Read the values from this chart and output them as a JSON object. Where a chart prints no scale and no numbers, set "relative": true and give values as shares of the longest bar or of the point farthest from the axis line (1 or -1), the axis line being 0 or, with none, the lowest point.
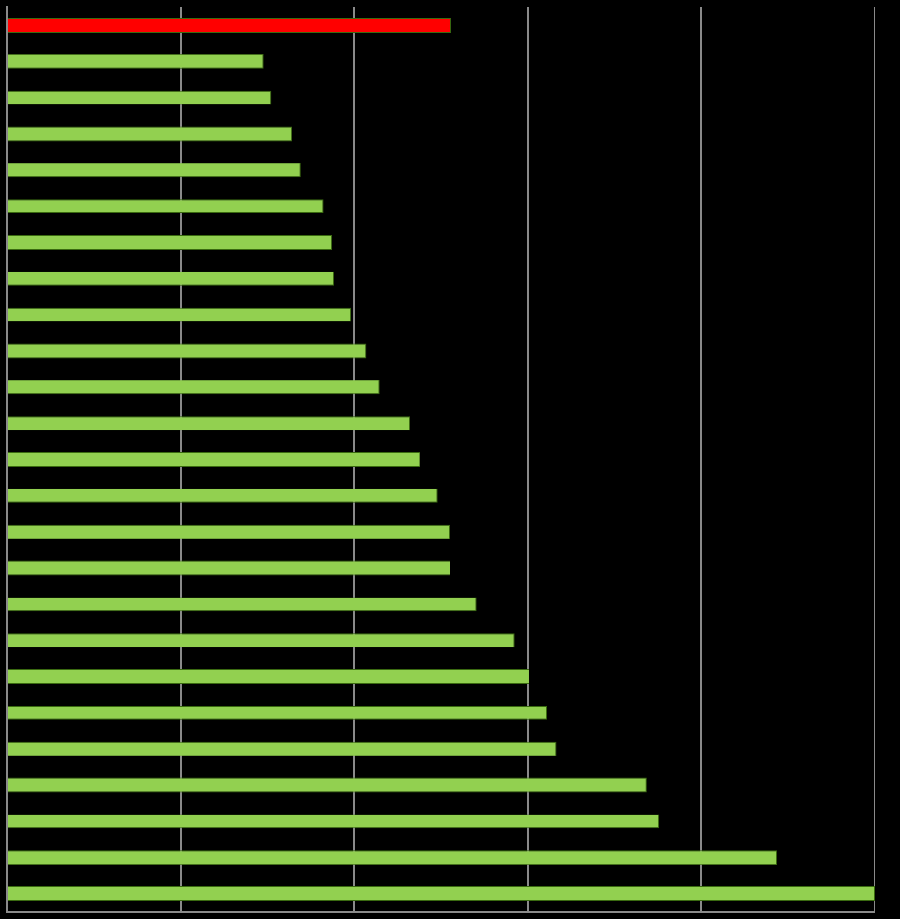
{
  "chart_data": {
    "type": "bar",
    "orientation": "horizontal",
    "relative": true,
    "grid": "x",
    "categories": [
      null,
      null,
      null,
      null,
      null,
      null,
      null,
      null,
      null,
      null,
      null,
      null,
      null,
      null,
      null,
      null,
      null,
      null,
      null,
      null,
      null,
      null,
      null,
      null,
      null
    ],
    "values": [
      0.512,
      0.296,
      0.304,
      0.328,
      0.338,
      0.365,
      0.375,
      0.377,
      0.396,
      0.414,
      0.429,
      0.464,
      0.476,
      0.496,
      0.51,
      0.511,
      0.541,
      0.585,
      0.602,
      0.622,
      0.633,
      0.737,
      0.752,
      0.888,
      1
    ],
    "colors": [
      "#ff0000",
      "#92d050",
      "#92d050",
      "#92d050",
      "#92d050",
      "#92d050",
      "#92d050",
      "#92d050",
      "#92d050",
      "#92d050",
      "#92d050",
      "#92d050",
      "#92d050",
      "#92d050",
      "#92d050",
      "#92d050",
      "#92d050",
      "#92d050",
      "#92d050",
      "#92d050",
      "#92d050",
      "#92d050",
      "#92d050",
      "#92d050",
      "#92d050"
    ]
  }
}
